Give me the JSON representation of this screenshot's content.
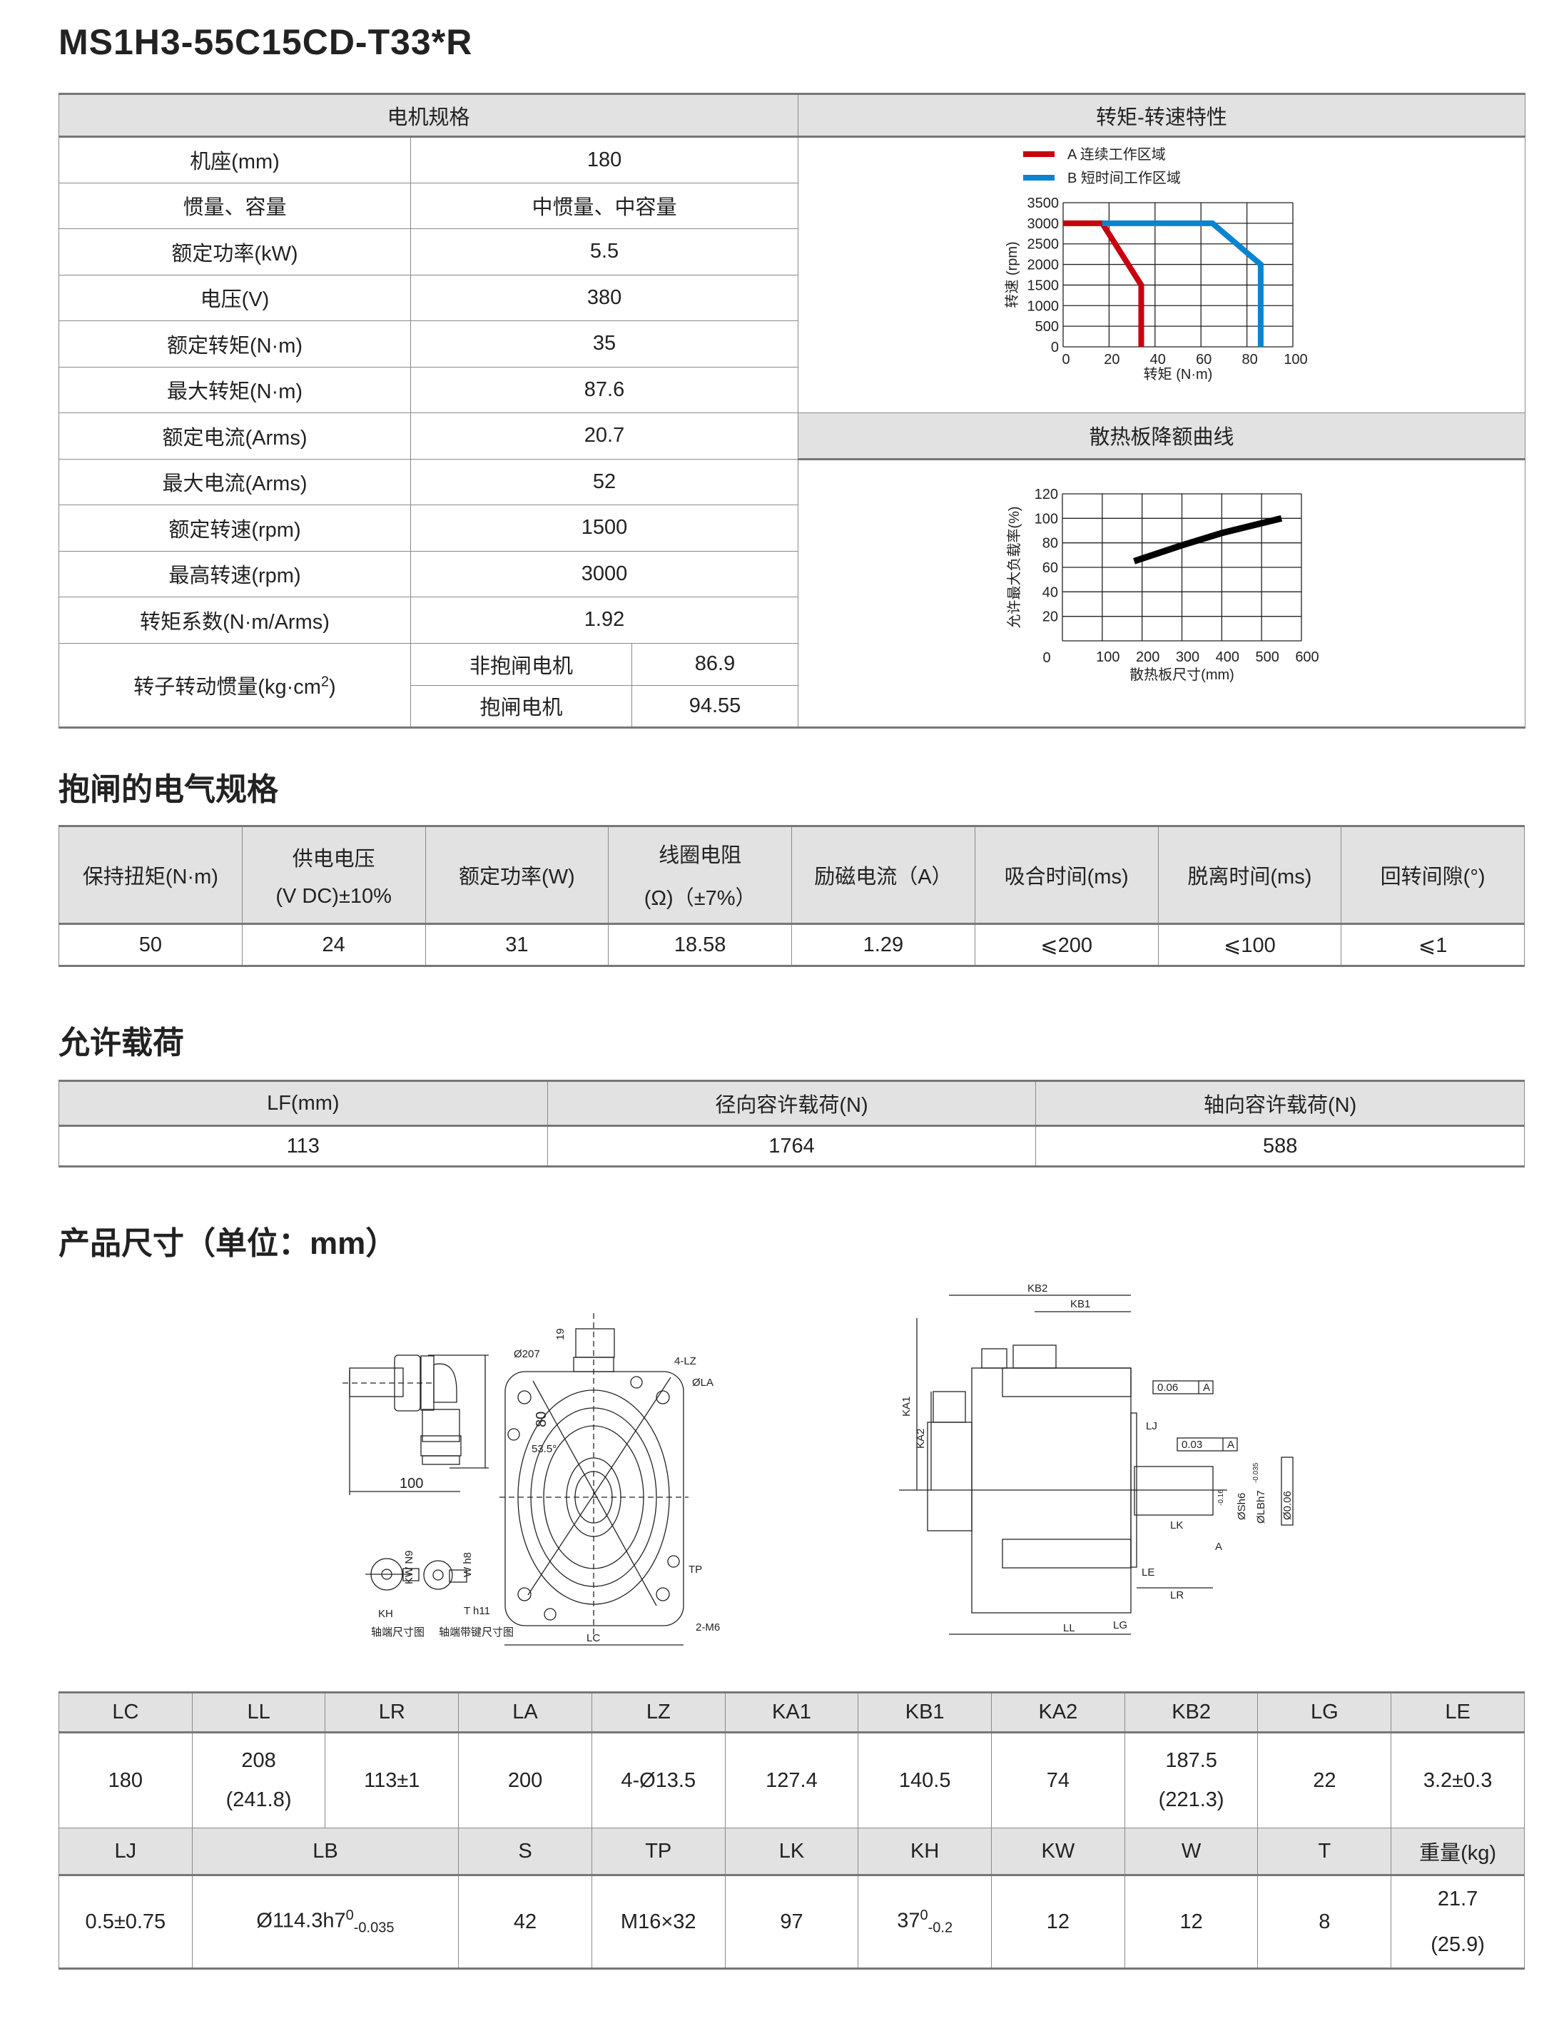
{
  "title": "MS1H3-55C15CD-T33*R",
  "spec": {
    "header": "电机规格",
    "rows": [
      {
        "label": "机座(mm)",
        "value": "180"
      },
      {
        "label": "惯量、容量",
        "value": "中惯量、中容量"
      },
      {
        "label": "额定功率(kW)",
        "value": "5.5"
      },
      {
        "label": "电压(V)",
        "value": "380"
      },
      {
        "label": "额定转矩(N·m)",
        "value": "35"
      },
      {
        "label": "最大转矩(N·m)",
        "value": "87.6"
      },
      {
        "label": "额定电流(Arms)",
        "value": "20.7"
      },
      {
        "label": "最大电流(Arms)",
        "value": "52"
      },
      {
        "label": "额定转速(rpm)",
        "value": "1500"
      },
      {
        "label": "最高转速(rpm)",
        "value": "3000"
      },
      {
        "label": "转矩系数(N·m/Arms)",
        "value": "1.92"
      }
    ],
    "inertia": {
      "label": "转子转动惯量(kg·cm",
      "label_sup": "2",
      "label_end": ")",
      "sub": [
        {
          "label": "非抱闸电机",
          "value": "86.9"
        },
        {
          "label": "抱闸电机",
          "value": "94.55"
        }
      ]
    }
  },
  "chart_data": [
    {
      "type": "line",
      "title": "转矩-转速特性",
      "xlabel": "转矩 (N·m)",
      "ylabel": "转速 (rpm)",
      "xlim": [
        0,
        100
      ],
      "ylim": [
        0,
        3500
      ],
      "xticks": [
        0,
        20,
        40,
        60,
        80,
        100
      ],
      "yticks": [
        0,
        500,
        1000,
        1500,
        2000,
        2500,
        3000,
        3500
      ],
      "grid": true,
      "legend": "top-left",
      "series": [
        {
          "name": "A 连续工作区域",
          "color": "#c8000f",
          "points": [
            [
              0,
              3000
            ],
            [
              17,
              3000
            ],
            [
              34,
              1500
            ],
            [
              34,
              0
            ]
          ]
        },
        {
          "name": "B 短时间工作区域",
          "color": "#0a84d0",
          "points": [
            [
              17,
              3000
            ],
            [
              65,
              3000
            ],
            [
              86,
              2000
            ],
            [
              86,
              0
            ]
          ]
        }
      ]
    },
    {
      "type": "line",
      "title": "散热板降额曲线",
      "xlabel": "散热板尺寸(mm)",
      "ylabel": "允许最大负载率(%)",
      "xlim": [
        0,
        600
      ],
      "ylim": [
        0,
        120
      ],
      "xticks": [
        100,
        200,
        300,
        400,
        500,
        600
      ],
      "yticks": [
        20,
        40,
        60,
        80,
        100,
        120
      ],
      "origin_label": "0",
      "grid": true,
      "series": [
        {
          "color": "#000000",
          "points": [
            [
              180,
              65
            ],
            [
              300,
              78
            ],
            [
              400,
              88
            ],
            [
              550,
              100
            ]
          ]
        }
      ]
    }
  ],
  "brake": {
    "title": "抱闸的电气规格",
    "headers": [
      {
        "l1": "保持扭矩(N·m)",
        "l2": ""
      },
      {
        "l1": "供电电压",
        "l2": "(V DC)±10%"
      },
      {
        "l1": "额定功率(W)",
        "l2": ""
      },
      {
        "l1": "线圈电阻",
        "l2": "(Ω)（±7%）"
      },
      {
        "l1": "励磁电流（A）",
        "l2": ""
      },
      {
        "l1": "吸合时间(ms)",
        "l2": ""
      },
      {
        "l1": "脱离时间(ms)",
        "l2": ""
      },
      {
        "l1": "回转间隙(°)",
        "l2": ""
      }
    ],
    "values": [
      "50",
      "24",
      "31",
      "18.58",
      "1.29",
      "⩽200",
      "⩽100",
      "⩽1"
    ]
  },
  "load": {
    "title": "允许载荷",
    "headers": [
      "LF(mm)",
      "径向容许载荷(N)",
      "轴向容许载荷(N)"
    ],
    "values": [
      "113",
      "1764",
      "588"
    ]
  },
  "dims": {
    "title": "产品尺寸（单位：mm）",
    "row1_headers": [
      "LC",
      "LL",
      "LR",
      "LA",
      "LZ",
      "KA1",
      "KB1",
      "KA2",
      "KB2",
      "LG",
      "LE"
    ],
    "row1_values": [
      {
        "a": "180",
        "b": ""
      },
      {
        "a": "208",
        "b": "(241.8)"
      },
      {
        "a": "113±1",
        "b": ""
      },
      {
        "a": "200",
        "b": ""
      },
      {
        "a": "4-Ø13.5",
        "b": ""
      },
      {
        "a": "127.4",
        "b": ""
      },
      {
        "a": "140.5",
        "b": ""
      },
      {
        "a": "74",
        "b": ""
      },
      {
        "a": "187.5",
        "b": "(221.3)"
      },
      {
        "a": "22",
        "b": ""
      },
      {
        "a": "3.2±0.3",
        "b": ""
      }
    ],
    "row2_headers": [
      "LJ",
      "LB",
      "S",
      "TP",
      "LK",
      "KH",
      "KW",
      "W",
      "T",
      "重量(kg)"
    ],
    "row2_values": {
      "LJ": "0.5±0.75",
      "LB": {
        "base": "Ø114.3h7",
        "sup": "0",
        "sub": "-0.035"
      },
      "S": "42",
      "TP": "M16×32",
      "LK": "97",
      "KH": {
        "base": "37",
        "sup": "0",
        "sub": "-0.2"
      },
      "KW": "12",
      "W": "12",
      "T": "8",
      "weight": {
        "a": "21.7",
        "b": "(25.9)"
      }
    }
  },
  "drawing": {
    "conn_len": "100",
    "conn_h": "80",
    "d207": "Ø207",
    "h19": "19",
    "lz": "4-LZ",
    "la": "ØLA",
    "angle": "53.5°",
    "tp": "TP",
    "m6": "2-M6",
    "lc": "LC",
    "kw": "KW N9",
    "wh": "W h8",
    "kh": "KH",
    "th": "T h11",
    "shaft_end": "轴端尺寸图",
    "shaft_key": "轴端带键尺寸图",
    "kb2": "KB2",
    "kb1": "KB1",
    "ka1": "KA1",
    "ka2": "KA2",
    "lj": "LJ",
    "le": "LE",
    "lr": "LR",
    "ll": "LL",
    "lg": "LG",
    "lk": "LK",
    "perp_tol": "0.06",
    "runout_tol": "0.03",
    "datum": "A",
    "conc_tol": "Ø0.06",
    "sh": "ØSh6",
    "sh_tol": "-0.16",
    "lbh": "ØLBh7",
    "lbh_tol": "-0.035"
  }
}
